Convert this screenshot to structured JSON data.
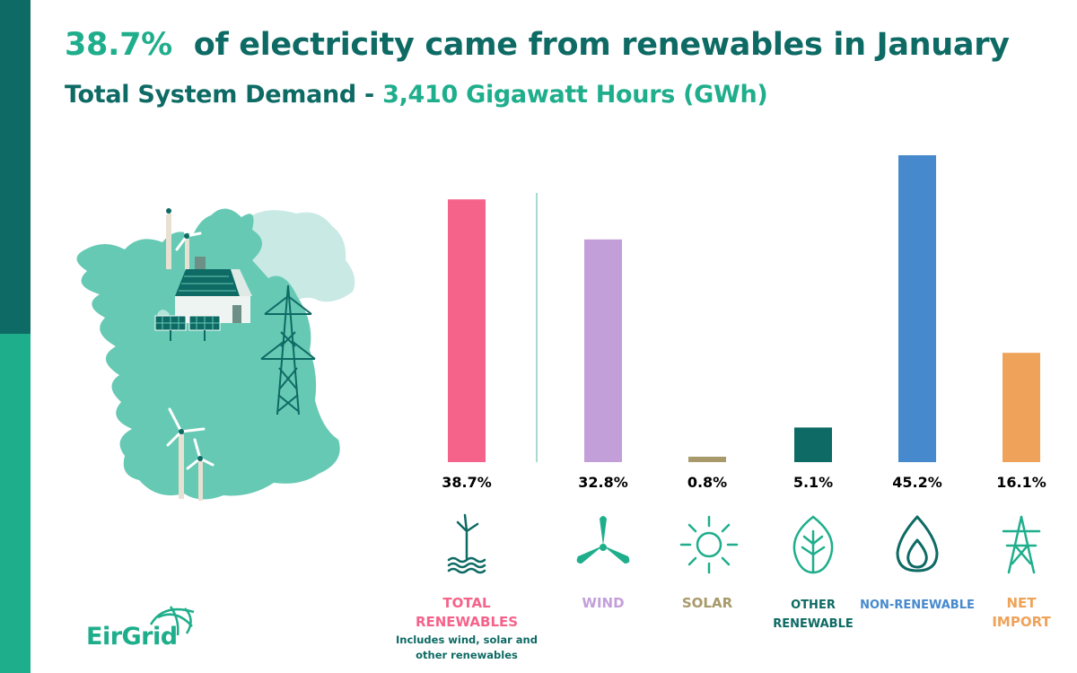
{
  "title": {
    "highlight": "38.7%",
    "text": "of electricity came from renewables in January"
  },
  "subtitle": {
    "text": "Total System Demand - ",
    "highlight": "3,410 Gigawatt Hours (GWh)"
  },
  "logo": {
    "text": "EirGrid"
  },
  "colors": {
    "dark_teal": "#0e6a64",
    "teal": "#1fae8c",
    "map": "#66c9b4",
    "map_light": "#c8e9e4",
    "total_renewables": "#f5638a",
    "wind": "#c39fda",
    "solar": "#a89a6a",
    "other_renewable": "#0e6a64",
    "non_renewable": "#4789cd",
    "net_import": "#efa35a"
  },
  "chart_data": {
    "type": "bar",
    "categories": [
      "TOTAL RENEWABLES",
      "WIND",
      "SOLAR",
      "OTHER RENEWABLE",
      "NON-RENEWABLE",
      "NET IMPORT"
    ],
    "values": [
      38.7,
      32.8,
      0.8,
      5.1,
      45.2,
      16.1
    ],
    "value_labels": [
      "38.7%",
      "32.8%",
      "0.8%",
      "5.1%",
      "45.2%",
      "16.1%"
    ],
    "label_lines": [
      [
        "TOTAL",
        "RENEWABLES"
      ],
      [
        "WIND"
      ],
      [
        "SOLAR"
      ],
      [
        "OTHER",
        "RENEWABLE"
      ],
      [
        "NON-RENEWABLE"
      ],
      [
        "NET",
        "IMPORT"
      ]
    ],
    "note": [
      "Includes wind, solar and",
      "other renewables"
    ],
    "colors": [
      "#f5638a",
      "#c39fda",
      "#a89a6a",
      "#0e6a64",
      "#4789cd",
      "#efa35a"
    ],
    "icons": [
      "wind-turbine-water-icon",
      "wind-blades-icon",
      "sun-icon",
      "leaf-icon",
      "flame-icon",
      "pylon-icon"
    ],
    "ylim": [
      0,
      45.2
    ],
    "grid": false,
    "axes": false
  }
}
